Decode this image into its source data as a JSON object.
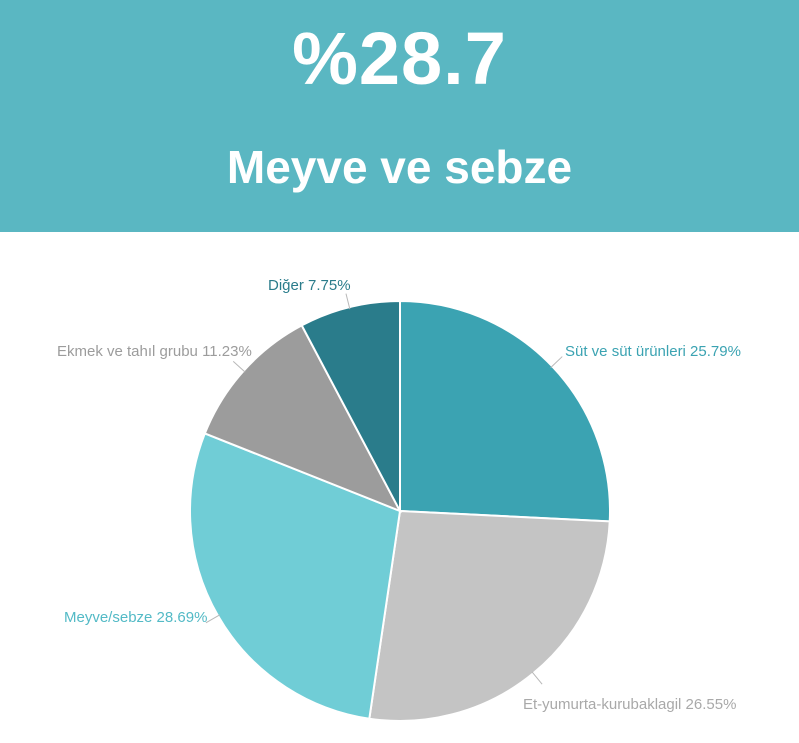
{
  "banner": {
    "percentage": "%28.7",
    "category": "Meyve ve sebze",
    "background": "#5ab7c2",
    "text_color": "#ffffff"
  },
  "chart_data": {
    "type": "pie",
    "title": "",
    "unit": "%",
    "start_angle_deg": 0,
    "direction": "clockwise",
    "legend_position": "outside-labels",
    "slices": [
      {
        "label": "Süt ve süt ürünleri",
        "value": 25.79,
        "display": "Süt ve süt ürünleri 25.79%",
        "color": "#3ba3b2",
        "label_color": "#3ba3b2"
      },
      {
        "label": "Et-yumurta-kurubaklagil",
        "value": 26.55,
        "display": "Et-yumurta-kurubaklagil 26.55%",
        "color": "#c4c4c4",
        "label_color": "#a9a9a9"
      },
      {
        "label": "Meyve/sebze",
        "value": 28.69,
        "display": "Meyve/sebze 28.69%",
        "color": "#70cdd6",
        "label_color": "#53bac6"
      },
      {
        "label": "Ekmek ve tahıl grubu",
        "value": 11.23,
        "display": "Ekmek ve tahıl grubu 11.23%",
        "color": "#9c9c9c",
        "label_color": "#9c9c9c"
      },
      {
        "label": "Diğer",
        "value": 7.75,
        "display": "Diğer 7.75%",
        "color": "#2a7c8b",
        "label_color": "#2a7c8b"
      }
    ]
  }
}
